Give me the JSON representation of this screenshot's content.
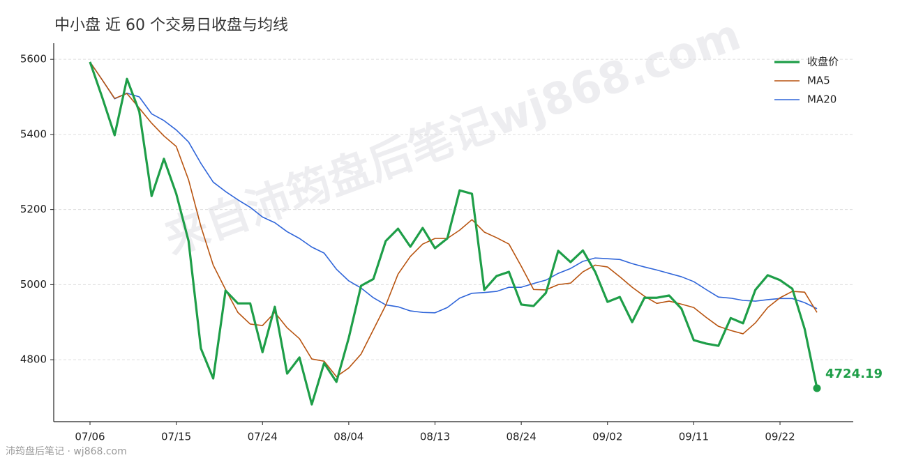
{
  "chart_data": {
    "type": "line",
    "title": "中小盘 近 60 个交易日收盘与均线",
    "watermark": "来自沛筠盘后笔记wj868.com",
    "footer": "沛筠盘后笔记 · wj868.com",
    "categories": [
      "07/06",
      null,
      null,
      null,
      null,
      null,
      null,
      "07/15",
      null,
      null,
      null,
      null,
      null,
      null,
      "07/24",
      null,
      null,
      null,
      null,
      null,
      null,
      "08/04",
      null,
      null,
      null,
      null,
      null,
      null,
      "08/13",
      null,
      null,
      null,
      null,
      null,
      null,
      "08/24",
      null,
      null,
      null,
      null,
      null,
      null,
      "09/02",
      null,
      null,
      null,
      null,
      null,
      null,
      "09/11",
      null,
      null,
      null,
      null,
      null,
      null,
      "09/22",
      null,
      null,
      null
    ],
    "series": [
      {
        "name": "收盘价",
        "color": "#1e9e48",
        "width": 3.2,
        "values": [
          5593,
          5498,
          5398,
          5548,
          5461,
          5236,
          5335,
          5242,
          5116,
          4830,
          4750,
          4984,
          4950,
          4950,
          4820,
          4941,
          4763,
          4806,
          4681,
          4791,
          4741,
          4858,
          4997,
          5015,
          5116,
          5149,
          5101,
          5151,
          5097,
          5123,
          5251,
          5242,
          4986,
          5023,
          5034,
          4947,
          4943,
          4978,
          5090,
          5060,
          5091,
          5034,
          4954,
          4967,
          4900,
          4965,
          4965,
          4971,
          4936,
          4852,
          4843,
          4837,
          4911,
          4897,
          4986,
          5025,
          5012,
          4989,
          4882,
          4724.19
        ]
      },
      {
        "name": "MA5",
        "color": "#b85410",
        "width": 1.6,
        "values": [
          5593,
          5545,
          5496,
          5509,
          5470,
          5430,
          5396,
          5368,
          5279,
          5155,
          5052,
          4987,
          4926,
          4895,
          4891,
          4926,
          4885,
          4856,
          4802,
          4796,
          4755,
          4778,
          4815,
          4880,
          4945,
          5028,
          5075,
          5108,
          5123,
          5123,
          5145,
          5173,
          5140,
          5125,
          5108,
          5049,
          4987,
          4986,
          5000,
          5004,
          5034,
          5052,
          5047,
          5021,
          4993,
          4969,
          4950,
          4956,
          4948,
          4939,
          4913,
          4889,
          4878,
          4869,
          4898,
          4939,
          4965,
          4982,
          4980,
          4926
        ]
      },
      {
        "name": "MA20",
        "color": "#2f65d9",
        "width": 1.6,
        "values": [
          5593,
          5545,
          5495,
          5510,
          5500,
          5455,
          5437,
          5412,
          5380,
          5323,
          5273,
          5248,
          5226,
          5206,
          5180,
          5165,
          5141,
          5123,
          5100,
          5084,
          5041,
          5010,
          4991,
          4965,
          4946,
          4941,
          4930,
          4926,
          4925,
          4939,
          4964,
          4977,
          4979,
          4982,
          4993,
          4993,
          5003,
          5012,
          5030,
          5043,
          5062,
          5071,
          5069,
          5067,
          5056,
          5047,
          5039,
          5030,
          5021,
          5008,
          4987,
          4967,
          4964,
          4958,
          4956,
          4960,
          4963,
          4963,
          4952,
          4936
        ]
      }
    ],
    "ylim": [
      4635,
      5643
    ],
    "yticks": [
      4800,
      5000,
      5200,
      5400,
      5600
    ],
    "grid": true,
    "legend": "upper-right"
  }
}
